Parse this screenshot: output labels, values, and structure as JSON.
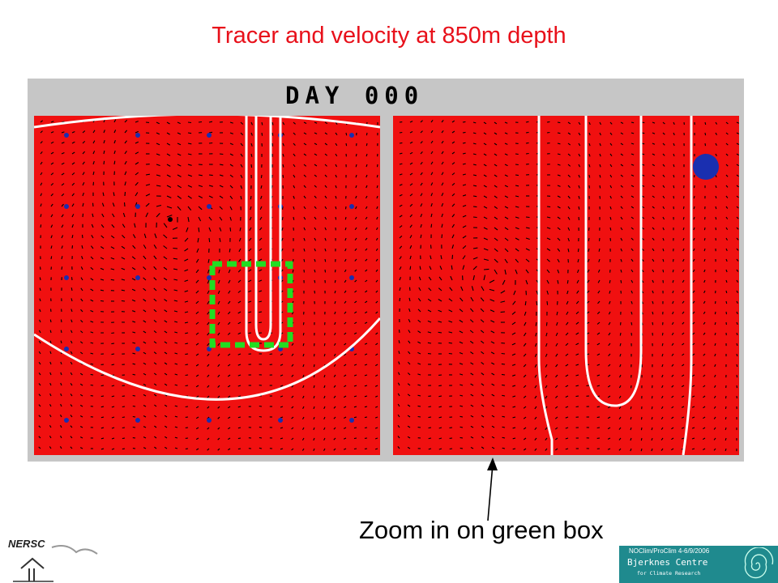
{
  "slide": {
    "title": "Tracer and velocity at 850m depth",
    "caption": "Zoom in on green box"
  },
  "figure": {
    "day_label": "DAY 000",
    "tracer_color": "#f01010",
    "contour_color": "#ffffff",
    "zoom_box_color": "#22dd22"
  },
  "footer": {
    "left_logo": "NERSC",
    "event": "NOClim/ProClim 4-6/9/2006",
    "org_name": "Bjerknes Centre",
    "org_sub": "for Climate Research",
    "badge_color": "#1f8a8e"
  }
}
